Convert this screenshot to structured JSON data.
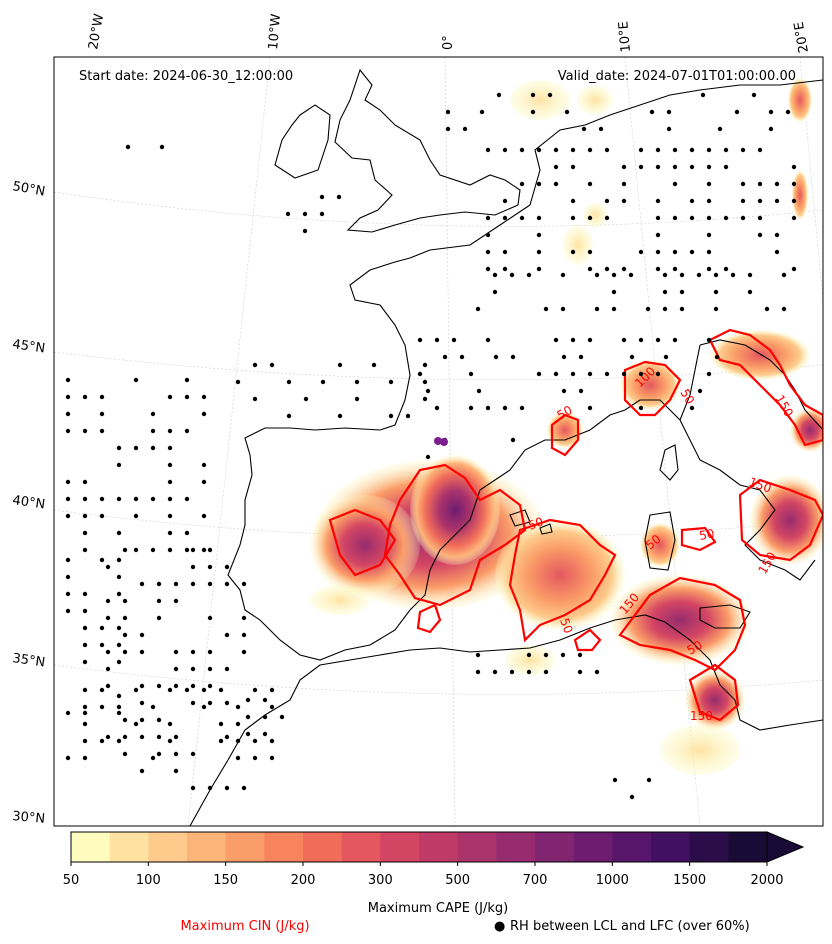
{
  "header": {
    "start_date": "Start date: 2024-06-30_12:00:00",
    "valid_date": "Valid_date: 2024-07-01T01:00:00.00"
  },
  "map": {
    "longitude_labels": [
      "20°W",
      "10°W",
      "0°",
      "10°E",
      "20°E"
    ],
    "latitude_labels": [
      "50°N",
      "45°N",
      "40°N",
      "35°N",
      "30°N"
    ],
    "cin_contour_labels": [
      "50",
      "50",
      "100",
      "150",
      "50",
      "50",
      "150",
      "50",
      "150",
      "50",
      "50",
      "150",
      "150"
    ],
    "colors": {
      "coastline": "#000000",
      "gridline": "#cccccc",
      "cin_contour": "#ff0000",
      "rh_marker": "#000000",
      "point_marker": "#7b1f8e"
    }
  },
  "colorbar": {
    "label": "Maximum CAPE (J/kg)",
    "tick_labels": [
      "50",
      "100",
      "150",
      "200",
      "300",
      "500",
      "700",
      "1000",
      "1500",
      "2000"
    ],
    "colors": [
      "#fefbbf",
      "#fee2a2",
      "#fecb8c",
      "#fdb478",
      "#fb9d68",
      "#f8845d",
      "#f16d5a",
      "#e4575e",
      "#d34563",
      "#c03a68",
      "#ab336c",
      "#962c6f",
      "#822570",
      "#6d1c6f",
      "#58166a",
      "#421060",
      "#2c0d4a",
      "#1a0b36"
    ],
    "extend": "max"
  },
  "legend": {
    "cin_label": "Maximum CIN (J/kg)",
    "rh_label": "RH between LCL and LFC (over 60%)",
    "rh_marker": "●"
  }
}
